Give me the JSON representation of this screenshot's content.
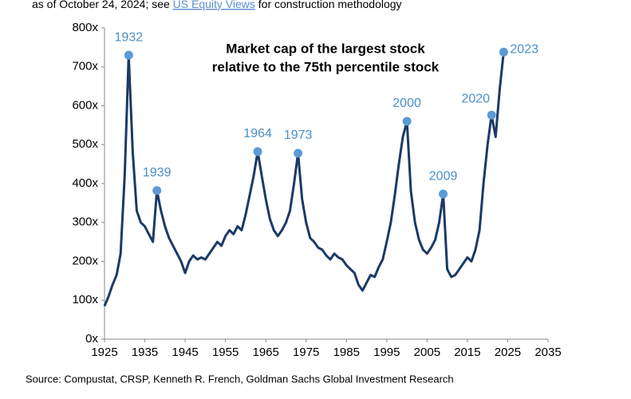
{
  "chart_data": {
    "type": "line",
    "note_parts": [
      "as of October 24, 2024; see ",
      "US Equity Views",
      " for construction methodology"
    ],
    "title_lines": [
      "Market cap of the largest stock",
      "relative to the 75th percentile stock"
    ],
    "source": "Source: Compustat, CRSP, Kenneth R. French, Goldman Sachs Global Investment Research",
    "x": [
      1925,
      1926,
      1927,
      1928,
      1929,
      1930,
      1931,
      1932,
      1933,
      1934,
      1935,
      1936,
      1937,
      1938,
      1939,
      1940,
      1941,
      1942,
      1943,
      1944,
      1945,
      1946,
      1947,
      1948,
      1949,
      1950,
      1951,
      1952,
      1953,
      1954,
      1955,
      1956,
      1957,
      1958,
      1959,
      1960,
      1961,
      1962,
      1963,
      1964,
      1965,
      1966,
      1967,
      1968,
      1969,
      1970,
      1971,
      1972,
      1973,
      1974,
      1975,
      1976,
      1977,
      1978,
      1979,
      1980,
      1981,
      1982,
      1983,
      1984,
      1985,
      1986,
      1987,
      1988,
      1989,
      1990,
      1991,
      1992,
      1993,
      1994,
      1995,
      1996,
      1997,
      1998,
      1999,
      2000,
      2001,
      2002,
      2003,
      2004,
      2005,
      2006,
      2007,
      2008,
      2009,
      2010,
      2011,
      2012,
      2013,
      2014,
      2015,
      2016,
      2017,
      2018,
      2019,
      2020,
      2021,
      2022,
      2023,
      2024
    ],
    "series": [
      {
        "color": "#1b3a66",
        "values": [
          85,
          110,
          140,
          165,
          220,
          420,
          730,
          480,
          330,
          300,
          290,
          270,
          250,
          382,
          330,
          290,
          260,
          240,
          220,
          200,
          170,
          200,
          215,
          205,
          210,
          205,
          220,
          235,
          250,
          240,
          265,
          280,
          270,
          290,
          280,
          320,
          370,
          420,
          482,
          420,
          360,
          310,
          280,
          265,
          280,
          300,
          330,
          400,
          478,
          360,
          300,
          260,
          250,
          235,
          230,
          215,
          205,
          220,
          210,
          205,
          190,
          180,
          170,
          140,
          125,
          145,
          165,
          160,
          185,
          205,
          250,
          300,
          370,
          450,
          520,
          560,
          380,
          300,
          255,
          230,
          220,
          235,
          255,
          300,
          373,
          180,
          160,
          165,
          180,
          195,
          210,
          200,
          230,
          280,
          400,
          500,
          576,
          520,
          640,
          738
        ]
      }
    ],
    "annotations": [
      {
        "label": "1932",
        "x": 1931,
        "y": 730
      },
      {
        "label": "1939",
        "x": 1938,
        "y": 382
      },
      {
        "label": "1964",
        "x": 1963,
        "y": 482
      },
      {
        "label": "1973",
        "x": 1973,
        "y": 478
      },
      {
        "label": "2000",
        "x": 2000,
        "y": 560
      },
      {
        "label": "2009",
        "x": 2009,
        "y": 373
      },
      {
        "label": "2020",
        "x": 2021,
        "y": 576
      },
      {
        "label": "2023",
        "x": 2024,
        "y": 738
      }
    ],
    "marker_color": "#5b9bd5",
    "xlim": [
      1925,
      2035
    ],
    "xticks": [
      1925,
      1935,
      1945,
      1955,
      1965,
      1975,
      1985,
      1995,
      2005,
      2015,
      2025,
      2035
    ],
    "ylim": [
      0,
      800
    ],
    "yticks": [
      {
        "value": 0,
        "label": "0x"
      },
      {
        "value": 100,
        "label": "100x"
      },
      {
        "value": 200,
        "label": "200x"
      },
      {
        "value": 300,
        "label": "300x"
      },
      {
        "value": 400,
        "label": "400x"
      },
      {
        "value": 500,
        "label": "500x"
      },
      {
        "value": 600,
        "label": "600x"
      },
      {
        "value": 700,
        "label": "700x"
      },
      {
        "value": 800,
        "label": "800x"
      }
    ]
  }
}
